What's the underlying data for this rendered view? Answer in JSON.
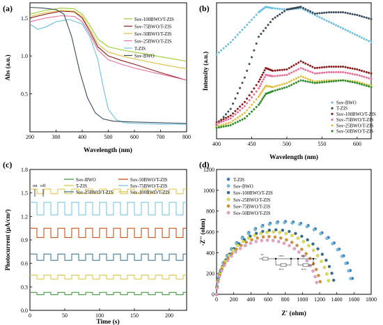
{
  "chart_data": [
    {
      "panel": "(a)",
      "type": "line",
      "xlabel": "Wavelength (nm)",
      "ylabel": "Abs (a.u.)",
      "xlim": [
        200,
        800
      ],
      "ylim": [
        0,
        1.7
      ],
      "xticks": [
        200,
        300,
        400,
        500,
        600,
        700,
        800
      ],
      "yticks": [
        0.5,
        1.0,
        1.5
      ],
      "legend_position": "top-right",
      "series": [
        {
          "name": "Sov-100BWO/T-ZIS",
          "color": "#9acd32",
          "x": [
            200,
            260,
            320,
            370,
            400,
            430,
            460,
            500,
            550,
            600,
            700,
            800
          ],
          "y": [
            1.55,
            1.6,
            1.63,
            1.62,
            1.55,
            1.4,
            1.22,
            1.12,
            1.08,
            1.05,
            0.99,
            0.93
          ]
        },
        {
          "name": "Sov-75BWO/T-ZIS",
          "color": "#8b1a1a",
          "x": [
            200,
            260,
            320,
            370,
            400,
            430,
            460,
            500,
            550,
            600,
            700,
            800
          ],
          "y": [
            1.5,
            1.55,
            1.59,
            1.58,
            1.5,
            1.32,
            1.12,
            1.0,
            0.94,
            0.89,
            0.78,
            0.68
          ]
        },
        {
          "name": "Sov-50BWO/T-ZIS",
          "color": "#e0c040",
          "x": [
            200,
            260,
            320,
            370,
            400,
            430,
            460,
            500,
            550,
            600,
            700,
            800
          ],
          "y": [
            1.52,
            1.57,
            1.6,
            1.59,
            1.52,
            1.35,
            1.16,
            1.05,
            1.0,
            0.96,
            0.89,
            0.83
          ]
        },
        {
          "name": "Sov-25BWO/T-ZIS",
          "color": "#e8709a",
          "x": [
            200,
            260,
            320,
            370,
            400,
            430,
            460,
            500,
            550,
            600,
            700,
            800
          ],
          "y": [
            1.45,
            1.5,
            1.53,
            1.52,
            1.45,
            1.28,
            1.08,
            0.95,
            0.89,
            0.84,
            0.76,
            0.68
          ]
        },
        {
          "name": "T-ZIS",
          "color": "#6cc0e0",
          "x": [
            200,
            230,
            260,
            300,
            350,
            400,
            430,
            460,
            480,
            500,
            530,
            560,
            600,
            700,
            800
          ],
          "y": [
            1.42,
            1.35,
            1.38,
            1.45,
            1.48,
            1.42,
            1.25,
            0.95,
            0.6,
            0.3,
            0.16,
            0.12,
            0.11,
            0.1,
            0.1
          ]
        },
        {
          "name": "Sov-BWO",
          "color": "#3a4a5a",
          "x": [
            200,
            250,
            300,
            330,
            360,
            390,
            420,
            450,
            480,
            520,
            600,
            700,
            800
          ],
          "y": [
            1.64,
            1.63,
            1.61,
            1.55,
            1.25,
            0.8,
            0.45,
            0.25,
            0.17,
            0.14,
            0.13,
            0.12,
            0.11
          ]
        }
      ]
    },
    {
      "panel": "(b)",
      "type": "scatter",
      "xlabel": "Wavelength (nm)",
      "ylabel": "Intensity (a.u.)",
      "xlim": [
        400,
        620
      ],
      "ylim": [
        0,
        1
      ],
      "xticks": [
        400,
        450,
        500,
        550,
        600
      ],
      "legend_position": "bottom-right",
      "series": [
        {
          "name": "Sov-BWO",
          "color": "#6cc0e0",
          "x": [
            400,
            420,
            440,
            460,
            470,
            480,
            500,
            520,
            540,
            560,
            580,
            600,
            620
          ],
          "y": [
            0.62,
            0.71,
            0.82,
            0.93,
            0.97,
            0.96,
            0.95,
            0.96,
            0.91,
            0.86,
            0.81,
            0.76,
            0.71
          ]
        },
        {
          "name": "T-ZIS",
          "color": "#3a4a5a",
          "x": [
            400,
            420,
            440,
            460,
            480,
            500,
            510,
            520,
            540,
            560,
            580,
            600,
            620
          ],
          "y": [
            0.1,
            0.22,
            0.45,
            0.75,
            0.88,
            0.95,
            0.96,
            0.97,
            0.92,
            0.93,
            0.93,
            0.91,
            0.88
          ]
        },
        {
          "name": "Sov-100BWO/T-ZIS",
          "color": "#8b1a1a",
          "x": [
            400,
            420,
            440,
            460,
            470,
            480,
            500,
            520,
            540,
            560,
            580,
            600,
            620
          ],
          "y": [
            0.12,
            0.17,
            0.27,
            0.42,
            0.52,
            0.5,
            0.51,
            0.57,
            0.52,
            0.53,
            0.53,
            0.51,
            0.48
          ]
        },
        {
          "name": "Sov-75BWO/T-ZIS",
          "color": "#e8709a",
          "x": [
            400,
            420,
            440,
            460,
            470,
            480,
            500,
            520,
            540,
            560,
            580,
            600,
            620
          ],
          "y": [
            0.11,
            0.15,
            0.24,
            0.37,
            0.47,
            0.46,
            0.47,
            0.52,
            0.48,
            0.49,
            0.49,
            0.47,
            0.44
          ]
        },
        {
          "name": "Sov-25BWO/T-ZIS",
          "color": "#e0c040",
          "x": [
            400,
            420,
            440,
            460,
            470,
            480,
            500,
            520,
            540,
            560,
            580,
            600,
            620
          ],
          "y": [
            0.09,
            0.12,
            0.19,
            0.31,
            0.39,
            0.38,
            0.41,
            0.46,
            0.42,
            0.43,
            0.43,
            0.42,
            0.39
          ]
        },
        {
          "name": "Sov-50BWO/T-ZIS",
          "color": "#2e8b2e",
          "x": [
            400,
            420,
            440,
            460,
            470,
            480,
            500,
            520,
            540,
            560,
            580,
            600,
            620
          ],
          "y": [
            0.08,
            0.1,
            0.15,
            0.25,
            0.33,
            0.35,
            0.38,
            0.43,
            0.41,
            0.42,
            0.43,
            0.41,
            0.38
          ]
        }
      ]
    },
    {
      "panel": "(c)",
      "type": "line",
      "xlabel": "Time (s)",
      "ylabel": "Photocurrent (μA/cm²)",
      "xlim": [
        0,
        225
      ],
      "ylim": [
        0,
        1.8
      ],
      "xticks": [
        0,
        50,
        100,
        150,
        200
      ],
      "yticks": [
        0.0,
        0.3,
        0.6,
        0.9,
        1.2,
        1.5,
        1.8
      ],
      "period_s": 20,
      "legend_position": "top",
      "annotations": {
        "on": "on",
        "off": "off"
      },
      "series": [
        {
          "name": "Sov-BWO",
          "color": "#2e8b2e",
          "off": 0.2,
          "on": 0.23
        },
        {
          "name": "Sov-50BWO/T-ZIS",
          "color": "#c04000",
          "off": 0.93,
          "on": 1.05
        },
        {
          "name": "T-ZIS",
          "color": "#e0c040",
          "off": 0.4,
          "on": 0.45
        },
        {
          "name": "Sov-75BWO/T-ZIS",
          "color": "#6cc0e0",
          "off": 1.22,
          "on": 1.38
        },
        {
          "name": "Sov-25BWO/T-ZIS",
          "color": "#2f6f8f",
          "off": 0.64,
          "on": 0.72
        },
        {
          "name": "Sov-100BWO/T-ZIS",
          "color": "#e0c040",
          "off": 1.49,
          "on": 1.55
        }
      ]
    },
    {
      "panel": "(d)",
      "type": "scatter",
      "xlabel": "Z' (ohm)",
      "ylabel": "-Z'' (ohm)",
      "xlim": [
        0,
        1800
      ],
      "ylim": [
        0,
        1200
      ],
      "xticks": [
        0,
        200,
        400,
        600,
        800,
        1000,
        1200,
        1400,
        1600,
        1800
      ],
      "yticks": [
        0,
        200,
        400,
        600,
        800,
        1000,
        1200
      ],
      "legend_position": "top-left",
      "circuit_labels": [
        "Rs",
        "CPE1",
        "CPE2",
        "Rct1",
        "Rct2"
      ],
      "series": [
        {
          "name": "T-ZIS",
          "color": "#3a7fd0",
          "arc_diameter": 1600,
          "peak": 700
        },
        {
          "name": "Sov-BWO",
          "color": "#6cc0e0",
          "arc_diameter": 1580,
          "peak": 690
        },
        {
          "name": "Sov-100BWO/T-ZIS",
          "color": "#2f6f8f",
          "arc_diameter": 1380,
          "peak": 620
        },
        {
          "name": "Sov-25BWO/T-ZIS",
          "color": "#e0e040",
          "arc_diameter": 1320,
          "peak": 600
        },
        {
          "name": "Sov-75BWO/T-ZIS",
          "color": "#d89030",
          "arc_diameter": 1220,
          "peak": 555
        },
        {
          "name": "Sov-50BWO/T-ZIS",
          "color": "#e8a0c8",
          "arc_diameter": 1180,
          "peak": 520
        }
      ]
    }
  ]
}
